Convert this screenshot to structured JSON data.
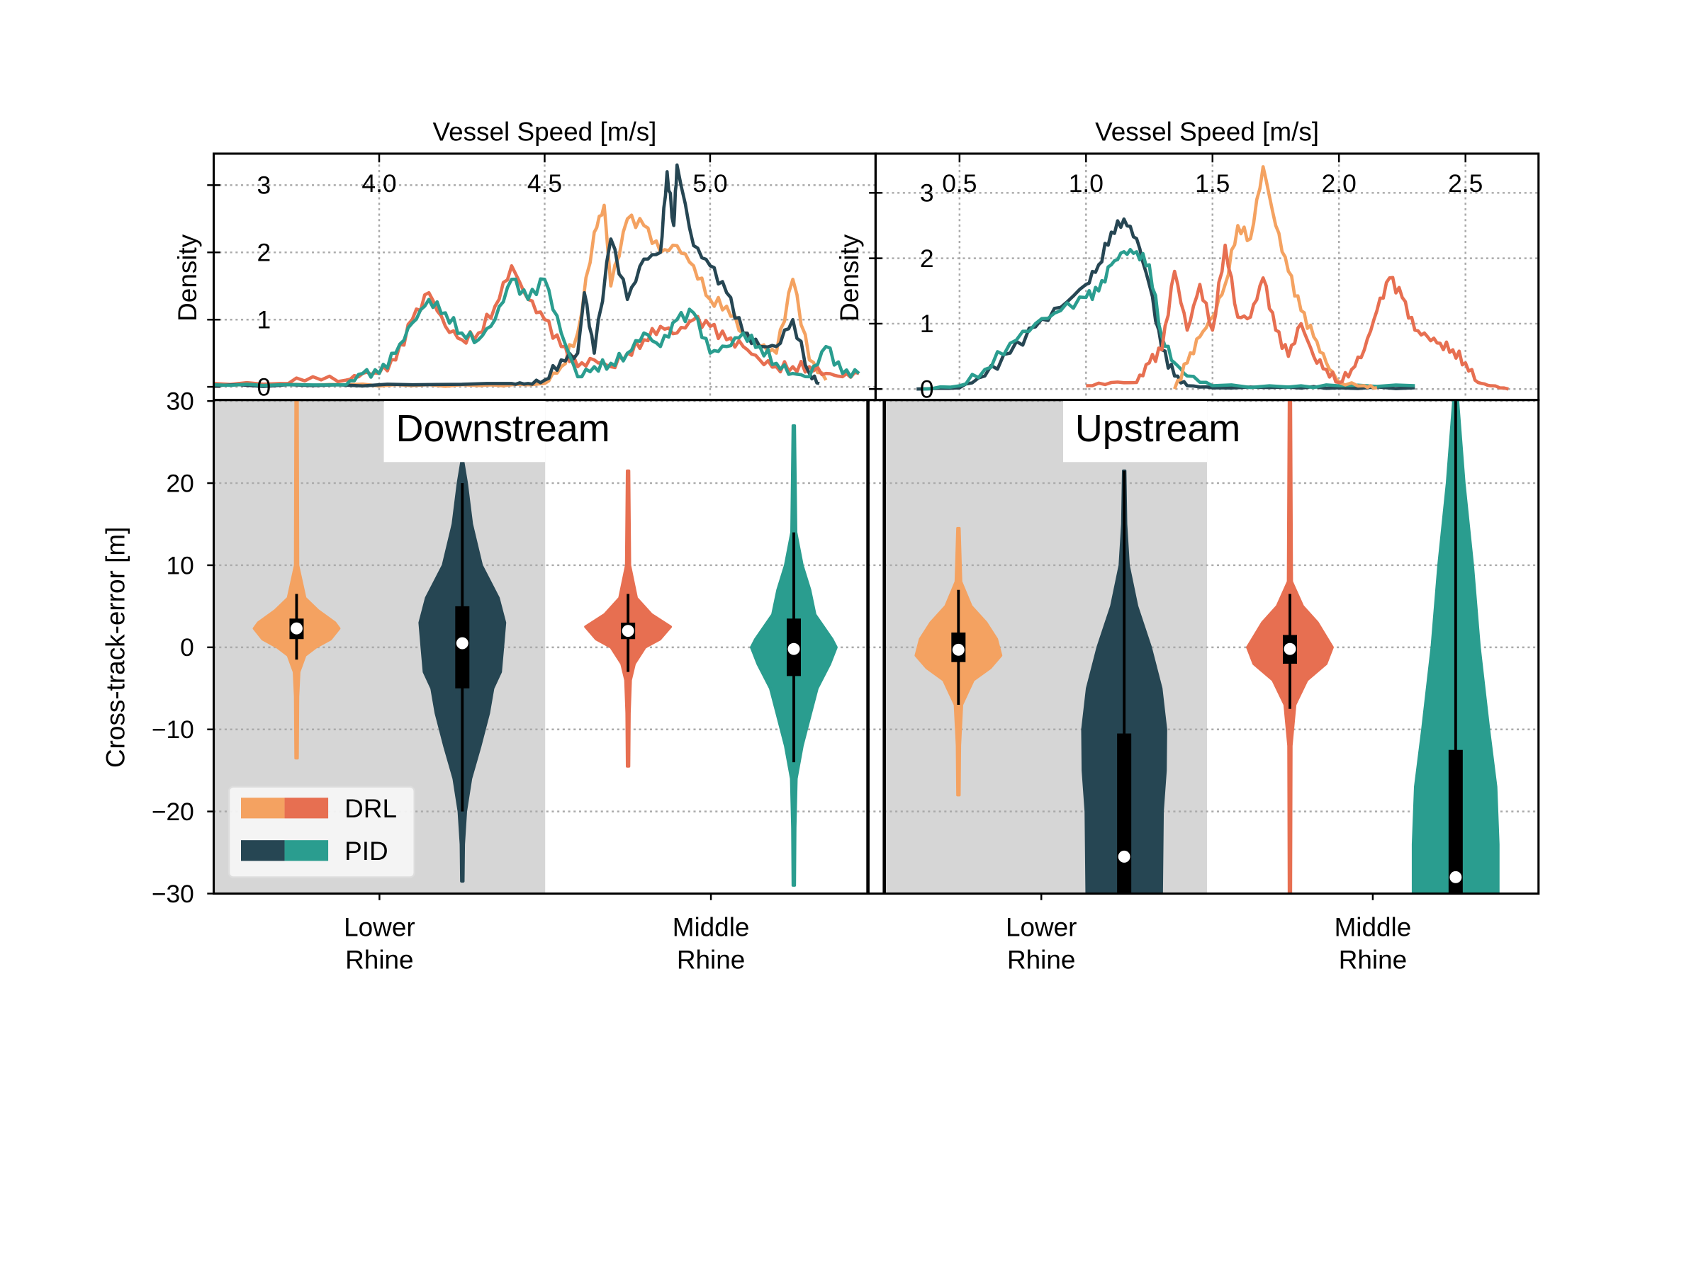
{
  "chart_data": [
    {
      "type": "line",
      "panel": "top-left",
      "xlabel": "Vessel Speed [m/s]",
      "ylabel": "Density",
      "xlim": [
        3.5,
        5.5
      ],
      "ylim": [
        -0.19,
        3.47
      ],
      "xticks": [
        "4.0",
        "4.5",
        "5.0"
      ],
      "yticks": [
        "0",
        "1",
        "2",
        "3"
      ],
      "grid": true,
      "series": [
        {
          "group": "DRL",
          "color": "#F4A261",
          "x": [
            3.5,
            3.7,
            3.9,
            4.1,
            4.3,
            4.45,
            4.5,
            4.55,
            4.6,
            4.65,
            4.68,
            4.7,
            4.75,
            4.8,
            4.85,
            4.9,
            4.95,
            5.0,
            5.05,
            5.1,
            5.15,
            5.2,
            5.25,
            5.3,
            5.35
          ],
          "y": [
            0.03,
            0.03,
            0.03,
            0.02,
            0.02,
            0.03,
            0.05,
            0.3,
            0.8,
            2.3,
            2.7,
            1.5,
            2.5,
            2.4,
            2.0,
            2.1,
            1.8,
            1.3,
            1.2,
            0.8,
            0.6,
            0.5,
            1.6,
            0.4,
            0.1
          ]
        },
        {
          "group": "DRL",
          "color": "#E76F51",
          "x": [
            3.5,
            3.7,
            3.8,
            3.9,
            3.95,
            4.0,
            4.05,
            4.1,
            4.15,
            4.2,
            4.25,
            4.3,
            4.35,
            4.4,
            4.45,
            4.5,
            4.55,
            4.6,
            4.65,
            4.7,
            4.75,
            4.8,
            4.85,
            4.9,
            4.95,
            5.0,
            5.05,
            5.1,
            5.15,
            5.2,
            5.25,
            5.3,
            5.35,
            5.4,
            5.45
          ],
          "y": [
            0.05,
            0.05,
            0.15,
            0.1,
            0.2,
            0.2,
            0.4,
            1.0,
            1.4,
            0.9,
            0.7,
            0.8,
            1.2,
            1.8,
            1.3,
            1.0,
            0.6,
            0.3,
            0.4,
            0.3,
            0.5,
            0.7,
            0.9,
            0.8,
            1.0,
            0.9,
            0.7,
            0.6,
            0.4,
            0.3,
            0.3,
            0.3,
            0.2,
            0.15,
            0.2
          ]
        },
        {
          "group": "PID",
          "color": "#264653",
          "x": [
            3.5,
            3.8,
            4.1,
            4.4,
            4.45,
            4.5,
            4.55,
            4.6,
            4.62,
            4.65,
            4.7,
            4.75,
            4.8,
            4.85,
            4.87,
            4.89,
            4.9,
            4.95,
            5.0,
            5.05,
            5.1,
            5.15,
            5.2,
            5.25,
            5.3,
            5.33
          ],
          "y": [
            0.02,
            0.02,
            0.03,
            0.05,
            0.05,
            0.1,
            0.4,
            0.5,
            1.4,
            0.5,
            2.2,
            1.3,
            1.9,
            2.0,
            3.2,
            2.4,
            3.3,
            2.1,
            1.8,
            1.4,
            0.8,
            0.6,
            0.6,
            1.0,
            0.2,
            0.05
          ]
        },
        {
          "group": "PID",
          "color": "#2A9D8F",
          "x": [
            3.5,
            3.7,
            3.9,
            3.95,
            4.0,
            4.05,
            4.1,
            4.15,
            4.2,
            4.25,
            4.3,
            4.35,
            4.4,
            4.45,
            4.5,
            4.55,
            4.6,
            4.65,
            4.7,
            4.75,
            4.8,
            4.85,
            4.9,
            4.95,
            5.0,
            5.05,
            5.1,
            5.15,
            5.2,
            5.25,
            5.3,
            5.35,
            5.4,
            5.45
          ],
          "y": [
            0.03,
            0.03,
            0.03,
            0.2,
            0.2,
            0.5,
            0.95,
            1.3,
            1.1,
            0.8,
            0.7,
            1.0,
            1.6,
            1.3,
            1.6,
            0.8,
            0.15,
            0.3,
            0.35,
            0.5,
            0.8,
            0.6,
            1.0,
            1.1,
            0.5,
            0.6,
            0.8,
            0.6,
            0.35,
            0.2,
            0.15,
            0.6,
            0.2,
            0.2
          ]
        }
      ]
    },
    {
      "type": "line",
      "panel": "top-right",
      "xlabel": "Vessel Speed [m/s]",
      "ylabel": "Density",
      "xlim": [
        0.17,
        2.79
      ],
      "ylim": [
        -0.2,
        3.3
      ],
      "xticks": [
        "0.5",
        "1.0",
        "1.5",
        "2.0",
        "2.5"
      ],
      "yticks": [
        "0",
        "1",
        "2",
        "3"
      ],
      "grid": true,
      "series": [
        {
          "group": "PID",
          "color": "#264653",
          "x": [
            0.33,
            0.5,
            0.6,
            0.7,
            0.8,
            0.9,
            1.0,
            1.05,
            1.1,
            1.15,
            1.2,
            1.25,
            1.3,
            1.35,
            1.4,
            1.5,
            1.8,
            2.0,
            2.3
          ],
          "y": [
            0,
            0.02,
            0.2,
            0.55,
            0.95,
            1.25,
            1.6,
            1.9,
            2.4,
            2.6,
            2.3,
            1.6,
            0.6,
            0.2,
            0.05,
            0.02,
            0.03,
            0.02,
            0.02
          ]
        },
        {
          "group": "PID",
          "color": "#2A9D8F",
          "x": [
            0.35,
            0.5,
            0.6,
            0.7,
            0.8,
            0.9,
            1.0,
            1.05,
            1.1,
            1.15,
            1.2,
            1.25,
            1.3,
            1.35,
            1.4,
            1.5,
            1.8,
            2.0,
            2.3
          ],
          "y": [
            0,
            0.05,
            0.3,
            0.7,
            1.0,
            1.2,
            1.4,
            1.5,
            1.9,
            2.1,
            2.1,
            1.9,
            0.8,
            0.4,
            0.2,
            0.05,
            0.03,
            0.05,
            0.05
          ]
        },
        {
          "group": "DRL",
          "color": "#F4A261",
          "x": [
            1.35,
            1.4,
            1.45,
            1.5,
            1.55,
            1.6,
            1.65,
            1.7,
            1.75,
            1.8,
            1.85,
            1.9,
            1.95,
            2.0,
            2.1,
            2.15
          ],
          "y": [
            0,
            0.4,
            0.8,
            1.1,
            1.6,
            2.5,
            2.3,
            3.4,
            2.5,
            1.8,
            1.2,
            0.8,
            0.4,
            0.1,
            0.05,
            0.02
          ]
        },
        {
          "group": "DRL",
          "color": "#E76F51",
          "x": [
            1.0,
            1.1,
            1.2,
            1.25,
            1.3,
            1.35,
            1.4,
            1.45,
            1.5,
            1.55,
            1.6,
            1.65,
            1.7,
            1.75,
            1.8,
            1.85,
            1.9,
            1.95,
            2.0,
            2.05,
            2.1,
            2.15,
            2.2,
            2.25,
            2.3,
            2.35,
            2.4,
            2.45,
            2.5,
            2.55,
            2.6,
            2.67
          ],
          "y": [
            0.05,
            0.1,
            0.1,
            0.4,
            0.6,
            1.8,
            0.9,
            1.6,
            0.9,
            2.2,
            1.1,
            1.1,
            1.7,
            0.9,
            0.5,
            1.0,
            0.5,
            0.3,
            0.1,
            0.3,
            0.6,
            1.2,
            1.7,
            1.4,
            0.9,
            0.8,
            0.7,
            0.6,
            0.4,
            0.1,
            0.05,
            0
          ]
        }
      ]
    },
    {
      "type": "violin",
      "panel": "bottom",
      "ylabel": "Cross-track-error [m]",
      "ylim": [
        -30,
        30
      ],
      "yticks": [
        "30",
        "20",
        "10",
        "0",
        "−10",
        "−20",
        "−30"
      ],
      "grid": true,
      "sections": [
        {
          "title": "Downstream",
          "categories": [
            [
              "Lower",
              "Rhine"
            ],
            [
              "Middle",
              "Rhine"
            ]
          ]
        },
        {
          "title": "Upstream",
          "categories": [
            [
              "Lower",
              "Rhine"
            ],
            [
              "Middle",
              "Rhine"
            ]
          ]
        }
      ],
      "legend": {
        "placement": "lower-left",
        "entries": [
          {
            "label": "DRL",
            "colors": [
              "#F4A261",
              "#E76F51"
            ]
          },
          {
            "label": "PID",
            "colors": [
              "#264653",
              "#2A9D8F"
            ]
          }
        ]
      },
      "violins": [
        {
          "section": 0,
          "category": 0,
          "group": "DRL",
          "color": "#F4A261",
          "median": 2.3,
          "q1": 1.0,
          "q3": 3.5,
          "whisker_low": -1.5,
          "whisker_high": 6.5,
          "min": -13.5,
          "max": 30,
          "profile": [
            [
              30,
              0.02
            ],
            [
              10,
              0.03
            ],
            [
              6,
              0.2
            ],
            [
              4.5,
              0.5
            ],
            [
              3,
              0.9
            ],
            [
              2.3,
              1
            ],
            [
              1,
              0.8
            ],
            [
              0,
              0.45
            ],
            [
              -1,
              0.2
            ],
            [
              -3,
              0.06
            ],
            [
              -6,
              0.03
            ],
            [
              -13.5,
              0.02
            ]
          ]
        },
        {
          "section": 0,
          "category": 0,
          "group": "PID",
          "color": "#264653",
          "median": 0.5,
          "q1": -5,
          "q3": 5,
          "whisker_low": -20,
          "whisker_high": 20,
          "min": -28.5,
          "max": 22.5,
          "profile": [
            [
              22.5,
              0.02
            ],
            [
              20,
              0.1
            ],
            [
              15,
              0.22
            ],
            [
              10,
              0.45
            ],
            [
              6,
              0.85
            ],
            [
              3,
              1
            ],
            [
              0,
              0.95
            ],
            [
              -3,
              0.9
            ],
            [
              -5,
              0.72
            ],
            [
              -8,
              0.62
            ],
            [
              -12,
              0.42
            ],
            [
              -16,
              0.2
            ],
            [
              -20,
              0.08
            ],
            [
              -24,
              0.03
            ],
            [
              -28.5,
              0.02
            ]
          ]
        },
        {
          "section": 0,
          "category": 1,
          "group": "DRL",
          "color": "#E76F51",
          "median": 2.0,
          "q1": 1.0,
          "q3": 3.0,
          "whisker_low": -3,
          "whisker_high": 6.5,
          "min": -14.5,
          "max": 21.5,
          "profile": [
            [
              21.5,
              0.02
            ],
            [
              10,
              0.04
            ],
            [
              6,
              0.2
            ],
            [
              4,
              0.55
            ],
            [
              2.5,
              1
            ],
            [
              1,
              0.75
            ],
            [
              0,
              0.4
            ],
            [
              -2,
              0.15
            ],
            [
              -4,
              0.06
            ],
            [
              -8,
              0.03
            ],
            [
              -14.5,
              0.02
            ]
          ]
        },
        {
          "section": 0,
          "category": 1,
          "group": "PID",
          "color": "#2A9D8F",
          "median": -0.2,
          "q1": -3.5,
          "q3": 3.5,
          "whisker_low": -14,
          "whisker_high": 14,
          "min": -29,
          "max": 27,
          "profile": [
            [
              27,
              0.02
            ],
            [
              14,
              0.05
            ],
            [
              10,
              0.2
            ],
            [
              7,
              0.38
            ],
            [
              4,
              0.5
            ],
            [
              1,
              0.9
            ],
            [
              0,
              1
            ],
            [
              -2,
              0.85
            ],
            [
              -5,
              0.55
            ],
            [
              -8,
              0.4
            ],
            [
              -12,
              0.2
            ],
            [
              -16,
              0.06
            ],
            [
              -22,
              0.03
            ],
            [
              -29,
              0.02
            ]
          ]
        },
        {
          "section": 1,
          "category": 0,
          "group": "DRL",
          "color": "#F4A261",
          "median": -0.3,
          "q1": -1.8,
          "q3": 1.8,
          "whisker_low": -7,
          "whisker_high": 7,
          "min": -18,
          "max": 14.5,
          "profile": [
            [
              14.5,
              0.02
            ],
            [
              8,
              0.06
            ],
            [
              5,
              0.3
            ],
            [
              3,
              0.65
            ],
            [
              1,
              0.9
            ],
            [
              -1,
              1
            ],
            [
              -2.5,
              0.75
            ],
            [
              -4,
              0.35
            ],
            [
              -7,
              0.08
            ],
            [
              -12,
              0.03
            ],
            [
              -18,
              0.02
            ]
          ]
        },
        {
          "section": 1,
          "category": 0,
          "group": "PID",
          "color": "#264653",
          "median": -25.5,
          "q1": -30,
          "q3": -10.5,
          "whisker_low": -30,
          "whisker_high": 21.5,
          "min": -30,
          "max": 21.5,
          "profile": [
            [
              21.5,
              0.02
            ],
            [
              15,
              0.04
            ],
            [
              10,
              0.1
            ],
            [
              5,
              0.3
            ],
            [
              0,
              0.62
            ],
            [
              -5,
              0.87
            ],
            [
              -10,
              0.98
            ],
            [
              -15,
              0.97
            ],
            [
              -20,
              0.9
            ],
            [
              -30,
              0.88
            ]
          ]
        },
        {
          "section": 1,
          "category": 1,
          "group": "DRL",
          "color": "#E76F51",
          "median": -0.2,
          "q1": -2.0,
          "q3": 1.5,
          "whisker_low": -7.5,
          "whisker_high": 6.5,
          "min": -30,
          "max": 30,
          "profile": [
            [
              30,
              0.02
            ],
            [
              8,
              0.04
            ],
            [
              5,
              0.3
            ],
            [
              3,
              0.65
            ],
            [
              0,
              1
            ],
            [
              -2,
              0.85
            ],
            [
              -4,
              0.4
            ],
            [
              -7,
              0.12
            ],
            [
              -12,
              0.03
            ],
            [
              -30,
              0.02
            ]
          ]
        },
        {
          "section": 1,
          "category": 1,
          "group": "PID",
          "color": "#2A9D8F",
          "median": -28,
          "q1": -30,
          "q3": -12.5,
          "whisker_low": -30,
          "whisker_high": 30,
          "min": -30,
          "max": 30,
          "profile": [
            [
              30,
              0.05
            ],
            [
              20,
              0.2
            ],
            [
              10,
              0.4
            ],
            [
              0,
              0.56
            ],
            [
              -10,
              0.78
            ],
            [
              -17,
              0.95
            ],
            [
              -24,
              1
            ],
            [
              -30,
              1
            ]
          ]
        }
      ]
    }
  ]
}
